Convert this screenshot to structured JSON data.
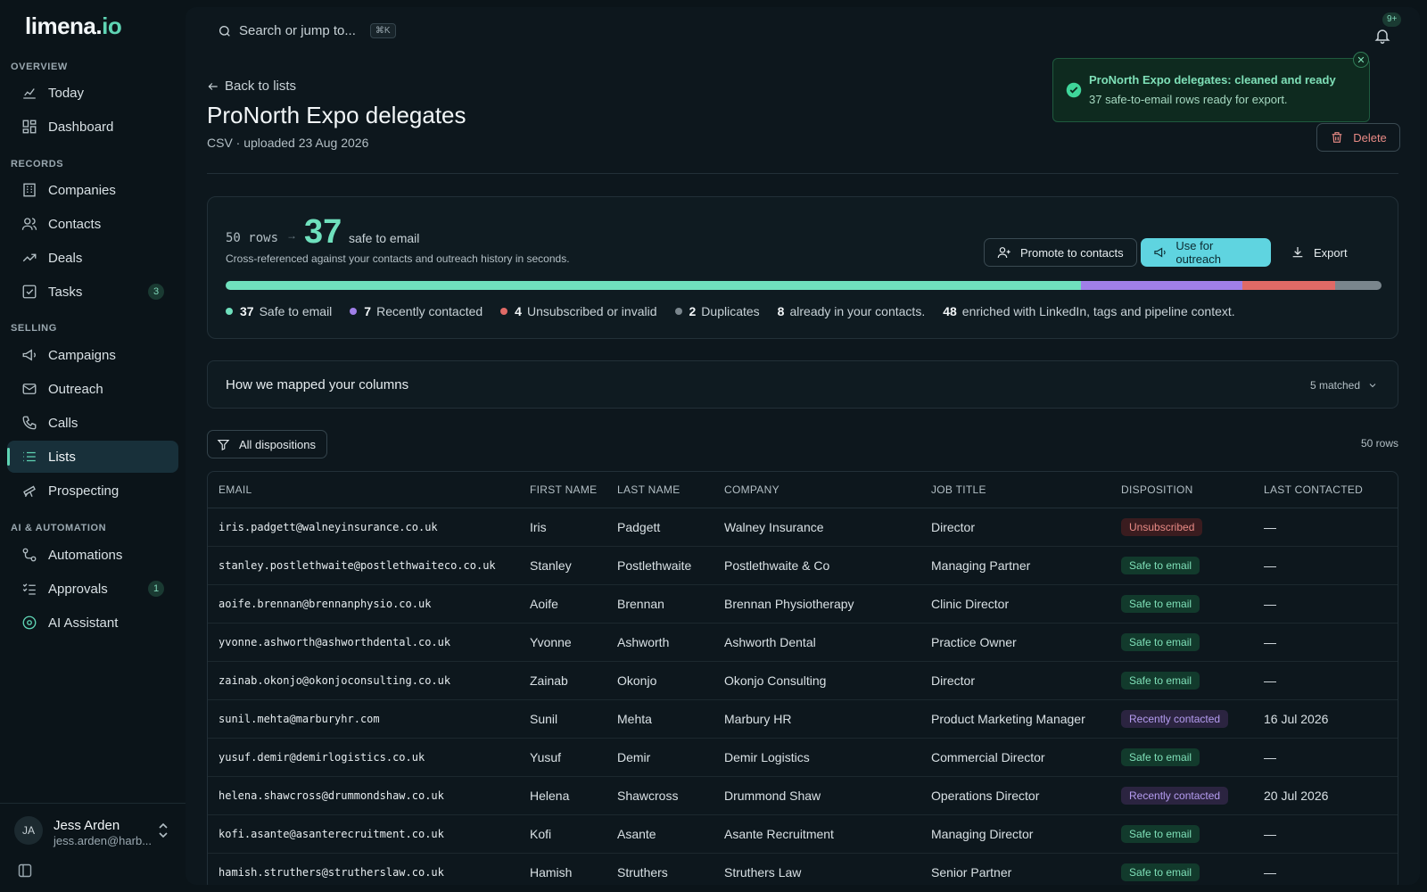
{
  "app": {
    "logo_main": "limena.",
    "logo_accent": "io"
  },
  "sidebar": {
    "sections": [
      {
        "label": "OVERVIEW"
      },
      {
        "label": "RECORDS"
      },
      {
        "label": "SELLING"
      },
      {
        "label": "AI & AUTOMATION"
      }
    ],
    "items": [
      {
        "label": "Today"
      },
      {
        "label": "Dashboard"
      },
      {
        "label": "Companies"
      },
      {
        "label": "Contacts"
      },
      {
        "label": "Deals"
      },
      {
        "label": "Tasks",
        "count": "3"
      },
      {
        "label": "Campaigns"
      },
      {
        "label": "Outreach"
      },
      {
        "label": "Calls"
      },
      {
        "label": "Lists"
      },
      {
        "label": "Prospecting"
      },
      {
        "label": "Automations"
      },
      {
        "label": "Approvals",
        "count": "1"
      },
      {
        "label": "AI Assistant"
      }
    ],
    "user": {
      "initials": "JA",
      "name": "Jess Arden",
      "email": "jess.arden@harb..."
    }
  },
  "topbar": {
    "search_placeholder": "Search or jump to...",
    "shortcut": "⌘K",
    "notifications": "9+"
  },
  "header": {
    "back_label": "Back to lists",
    "title": "ProNorth Expo delegates",
    "subtitle": "CSV · uploaded 23 Aug 2026",
    "delete_label": "Delete"
  },
  "toast": {
    "title": "ProNorth Expo delegates: cleaned and ready",
    "message": "37 safe-to-email rows ready for export."
  },
  "summary": {
    "rows_label": "50 rows",
    "safe_count": "37",
    "safe_label": "safe to email",
    "description": "Cross-referenced against your contacts and outreach history in seconds.",
    "promote_label": "Promote to contacts",
    "outreach_label": "Use for outreach",
    "export_label": "Export",
    "breakdown": [
      {
        "count": "37",
        "label": "Safe to email",
        "color": "#6fe0bd",
        "value": 37
      },
      {
        "count": "7",
        "label": "Recently contacted",
        "color": "#a07fe8",
        "value": 7
      },
      {
        "count": "4",
        "label": "Unsubscribed or invalid",
        "color": "#e06a66",
        "value": 4
      },
      {
        "count": "2",
        "label": "Duplicates",
        "color": "#7a868d",
        "value": 2
      }
    ],
    "in_contacts_count": "8",
    "in_contacts_label": "already in your contacts.",
    "enriched_count": "48",
    "enriched_label": "enriched with LinkedIn, tags and pipeline context."
  },
  "mapping": {
    "label": "How we mapped your columns",
    "matched": "5 matched"
  },
  "filter": {
    "label": "All dispositions",
    "row_count": "50 rows"
  },
  "table": {
    "columns": [
      "EMAIL",
      "FIRST NAME",
      "LAST NAME",
      "COMPANY",
      "JOB TITLE",
      "DISPOSITION",
      "LAST CONTACTED"
    ],
    "rows": [
      {
        "email": "iris.padgett@walneyinsurance.co.uk",
        "first": "Iris",
        "last": "Padgett",
        "company": "Walney Insurance",
        "title": "Director",
        "disposition": "Unsubscribed",
        "kind": "unsub",
        "last_contacted": "—"
      },
      {
        "email": "stanley.postlethwaite@postlethwaiteco.co.uk",
        "first": "Stanley",
        "last": "Postlethwaite",
        "company": "Postlethwaite & Co",
        "title": "Managing Partner",
        "disposition": "Safe to email",
        "kind": "safe",
        "last_contacted": "—"
      },
      {
        "email": "aoife.brennan@brennanphysio.co.uk",
        "first": "Aoife",
        "last": "Brennan",
        "company": "Brennan Physiotherapy",
        "title": "Clinic Director",
        "disposition": "Safe to email",
        "kind": "safe",
        "last_contacted": "—"
      },
      {
        "email": "yvonne.ashworth@ashworthdental.co.uk",
        "first": "Yvonne",
        "last": "Ashworth",
        "company": "Ashworth Dental",
        "title": "Practice Owner",
        "disposition": "Safe to email",
        "kind": "safe",
        "last_contacted": "—"
      },
      {
        "email": "zainab.okonjo@okonjoconsulting.co.uk",
        "first": "Zainab",
        "last": "Okonjo",
        "company": "Okonjo Consulting",
        "title": "Director",
        "disposition": "Safe to email",
        "kind": "safe",
        "last_contacted": "—"
      },
      {
        "email": "sunil.mehta@marburyhr.com",
        "first": "Sunil",
        "last": "Mehta",
        "company": "Marbury HR",
        "title": "Product Marketing Manager",
        "disposition": "Recently contacted",
        "kind": "recent",
        "last_contacted": "16 Jul 2026"
      },
      {
        "email": "yusuf.demir@demirlogistics.co.uk",
        "first": "Yusuf",
        "last": "Demir",
        "company": "Demir Logistics",
        "title": "Commercial Director",
        "disposition": "Safe to email",
        "kind": "safe",
        "last_contacted": "—"
      },
      {
        "email": "helena.shawcross@drummondshaw.co.uk",
        "first": "Helena",
        "last": "Shawcross",
        "company": "Drummond Shaw",
        "title": "Operations Director",
        "disposition": "Recently contacted",
        "kind": "recent",
        "last_contacted": "20 Jul 2026"
      },
      {
        "email": "kofi.asante@asanterecruitment.co.uk",
        "first": "Kofi",
        "last": "Asante",
        "company": "Asante Recruitment",
        "title": "Managing Director",
        "disposition": "Safe to email",
        "kind": "safe",
        "last_contacted": "—"
      },
      {
        "email": "hamish.struthers@strutherslaw.co.uk",
        "first": "Hamish",
        "last": "Struthers",
        "company": "Struthers Law",
        "title": "Senior Partner",
        "disposition": "Safe to email",
        "kind": "safe",
        "last_contacted": "—"
      }
    ]
  },
  "colors": {
    "accent": "#5fd4b4",
    "safe": "#6fe0bd",
    "recent": "#a07fe8",
    "unsub": "#e06a66",
    "dup": "#7a868d"
  }
}
